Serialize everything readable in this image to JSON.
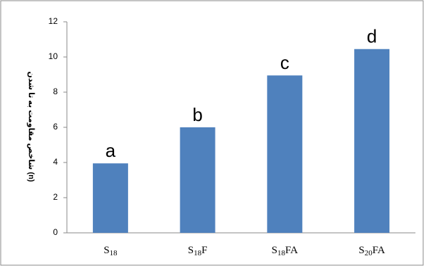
{
  "chart_data": {
    "type": "bar",
    "y_label": "شاخص مقاومت به تا شدن (n)",
    "categories": [
      "S18",
      "S18F",
      "S18FA",
      "S20FA"
    ],
    "values": [
      3.95,
      6,
      8.95,
      10.45
    ],
    "annotations": [
      "a",
      "b",
      "c",
      "d"
    ],
    "color": "#4f81bd",
    "ylim": [
      0,
      12
    ],
    "yticks": [
      0,
      2,
      4,
      6,
      8,
      10,
      12
    ],
    "grid": false
  }
}
